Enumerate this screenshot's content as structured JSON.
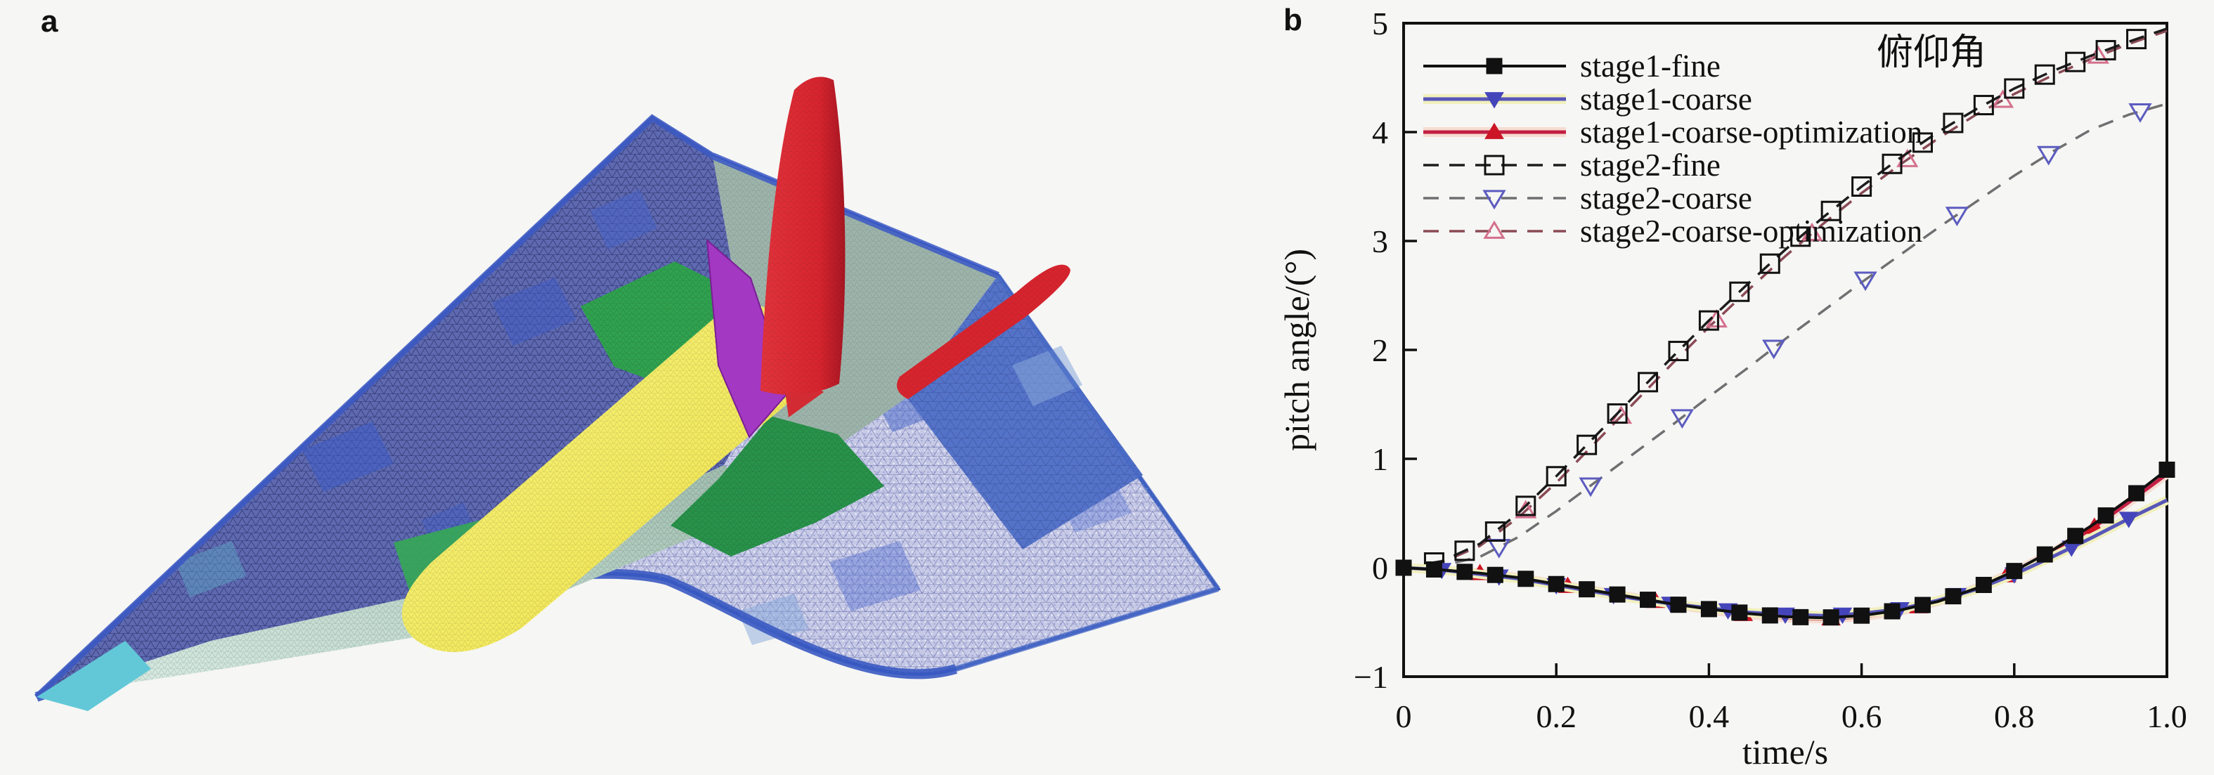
{
  "figure": {
    "background": "#f6f6f4",
    "panel_a": {
      "label": "a",
      "content": "surface mesh of a hypersonic aircraft (delta wing, twin red fins, yellow core body, green fairing)",
      "palette": {
        "underside": "#c6c9e6",
        "wing_top": "#5e69b0",
        "wing_blue": "#3c59c4",
        "edge_blue": "#2e4fb5",
        "deck": "#9db4ab",
        "chine_light": "#dceee6",
        "chine_dark": "#9fbcae",
        "nose": "#62c8d8",
        "body_green": "#2fa24f",
        "core_yellow": "#f2e95e",
        "core_yellow_deep": "#eccb31",
        "fin_red": "#d7242e",
        "fin_red_deep": "#a81622",
        "fin_purple": "#a338c2"
      }
    },
    "panel_b": {
      "label": "b"
    }
  },
  "chart_data": {
    "type": "line",
    "title": "",
    "annotation": "俯仰角",
    "xlabel": "time/s",
    "ylabel": "pitch angle/(°)",
    "xlim": [
      0,
      1
    ],
    "ylim": [
      -1,
      5
    ],
    "grid": false,
    "legend_position": "upper-left",
    "xticks": {
      "values": [
        0,
        0.2,
        0.4,
        0.6,
        0.8,
        1.0
      ],
      "labels": [
        "0",
        "0.2",
        "0.4",
        "0.6",
        "0.8",
        "1.0"
      ]
    },
    "yticks": {
      "values": [
        -1,
        0,
        1,
        2,
        3,
        4,
        5
      ],
      "labels": [
        "−1",
        "0",
        "1",
        "2",
        "3",
        "4",
        "5"
      ]
    },
    "x": [
      0,
      0.05,
      0.1,
      0.15,
      0.2,
      0.25,
      0.3,
      0.35,
      0.4,
      0.45,
      0.5,
      0.55,
      0.6,
      0.65,
      0.7,
      0.75,
      0.8,
      0.85,
      0.9,
      0.95,
      1.0
    ],
    "series": [
      {
        "name": "stage1-fine",
        "line_color": "#111111",
        "line_style": "solid",
        "line_width": 4,
        "halo": null,
        "marker": {
          "shape": "square",
          "filled": true,
          "color": "#111111",
          "size": 22
        },
        "y": [
          0,
          -0.02,
          -0.05,
          -0.09,
          -0.15,
          -0.21,
          -0.27,
          -0.33,
          -0.38,
          -0.42,
          -0.45,
          -0.46,
          -0.44,
          -0.39,
          -0.31,
          -0.19,
          -0.03,
          0.16,
          0.38,
          0.63,
          0.9
        ],
        "marker_x": [
          0,
          0.04,
          0.08,
          0.12,
          0.16,
          0.2,
          0.24,
          0.28,
          0.32,
          0.36,
          0.4,
          0.44,
          0.48,
          0.52,
          0.56,
          0.6,
          0.64,
          0.68,
          0.72,
          0.76,
          0.8,
          0.84,
          0.88,
          0.92,
          0.96,
          1.0
        ]
      },
      {
        "name": "stage1-coarse",
        "line_color": "#5756b8",
        "line_style": "solid",
        "line_width": 5,
        "halo": "#f1f0bd",
        "marker": {
          "shape": "triangle-down",
          "filled": true,
          "color": "#4545bb",
          "size": 26
        },
        "y": [
          0,
          -0.02,
          -0.06,
          -0.1,
          -0.16,
          -0.22,
          -0.28,
          -0.33,
          -0.37,
          -0.41,
          -0.43,
          -0.44,
          -0.42,
          -0.38,
          -0.3,
          -0.2,
          -0.06,
          0.1,
          0.27,
          0.45,
          0.62
        ],
        "marker_x": [
          0.05,
          0.125,
          0.2,
          0.275,
          0.35,
          0.425,
          0.5,
          0.575,
          0.65,
          0.725,
          0.8,
          0.875,
          0.95
        ]
      },
      {
        "name": "stage1-coarse-optimization",
        "line_color": "#c21f45",
        "line_style": "solid",
        "line_width": 5,
        "halo": "#f5ddd2",
        "marker": {
          "shape": "triangle-up",
          "filled": true,
          "color": "#cc1525",
          "size": 26
        },
        "y": [
          0,
          -0.02,
          -0.05,
          -0.09,
          -0.15,
          -0.21,
          -0.27,
          -0.33,
          -0.39,
          -0.43,
          -0.46,
          -0.47,
          -0.45,
          -0.4,
          -0.31,
          -0.19,
          -0.04,
          0.14,
          0.35,
          0.6,
          0.86
        ],
        "marker_x": [
          0.1,
          0.215,
          0.33,
          0.445,
          0.56,
          0.675,
          0.79,
          0.905
        ]
      },
      {
        "name": "stage2-fine",
        "line_color": "#1c1c1c",
        "line_style": "dashed",
        "line_width": 3.5,
        "halo": null,
        "marker": {
          "shape": "square",
          "filled": false,
          "color": "#111111",
          "size": 26
        },
        "y": [
          0,
          0.06,
          0.22,
          0.5,
          0.84,
          1.2,
          1.56,
          1.92,
          2.27,
          2.6,
          2.92,
          3.22,
          3.5,
          3.76,
          4.0,
          4.21,
          4.4,
          4.56,
          4.7,
          4.83,
          4.95
        ],
        "marker_x": [
          0.04,
          0.08,
          0.12,
          0.16,
          0.2,
          0.24,
          0.28,
          0.32,
          0.36,
          0.4,
          0.44,
          0.48,
          0.52,
          0.56,
          0.6,
          0.64,
          0.68,
          0.72,
          0.76,
          0.8,
          0.84,
          0.88,
          0.92,
          0.96
        ]
      },
      {
        "name": "stage2-coarse",
        "line_color": "#6f6f72",
        "line_style": "dashed",
        "line_width": 3.5,
        "halo": null,
        "marker": {
          "shape": "triangle-down",
          "filled": false,
          "color": "#5c5cc0",
          "size": 28
        },
        "y": [
          0,
          0.02,
          0.1,
          0.28,
          0.52,
          0.78,
          1.04,
          1.3,
          1.57,
          1.83,
          2.1,
          2.36,
          2.62,
          2.87,
          3.12,
          3.36,
          3.6,
          3.82,
          4.02,
          4.16,
          4.26
        ],
        "marker_x": [
          0.125,
          0.245,
          0.365,
          0.485,
          0.605,
          0.725,
          0.845,
          0.965
        ]
      },
      {
        "name": "stage2-coarse-optimization",
        "line_color": "#8a4a55",
        "line_style": "dashed",
        "line_width": 3.5,
        "halo": null,
        "marker": {
          "shape": "triangle-up",
          "filled": false,
          "color": "#d4708c",
          "size": 26
        },
        "y": [
          0,
          0.05,
          0.2,
          0.46,
          0.78,
          1.14,
          1.5,
          1.86,
          2.21,
          2.54,
          2.86,
          3.16,
          3.44,
          3.7,
          3.94,
          4.16,
          4.35,
          4.52,
          4.67,
          4.81,
          4.93
        ],
        "marker_x": [
          0.16,
          0.285,
          0.41,
          0.535,
          0.66,
          0.785,
          0.91
        ]
      }
    ]
  }
}
